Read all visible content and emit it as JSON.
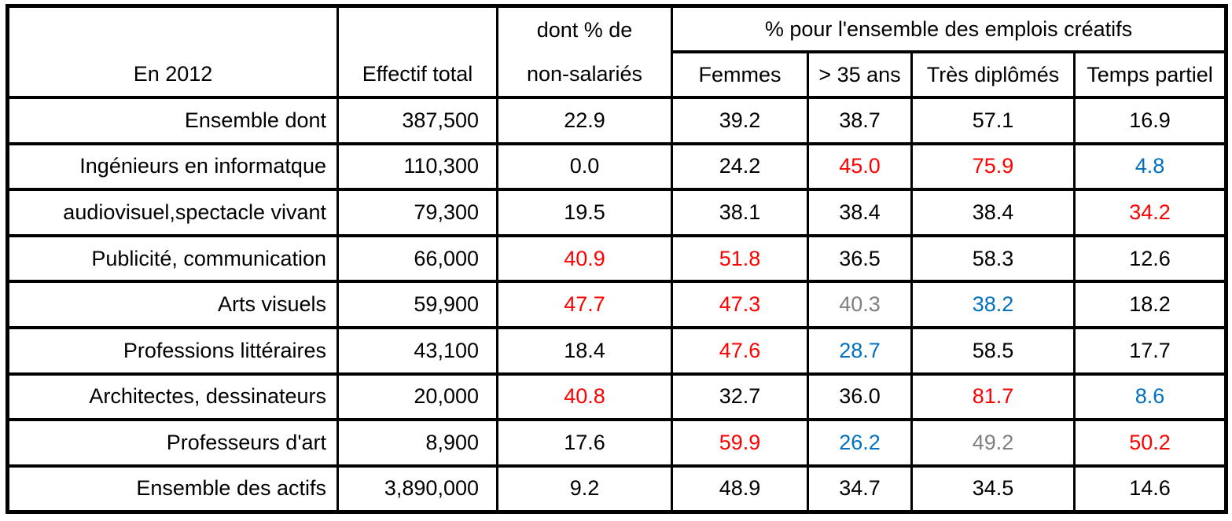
{
  "table": {
    "header": {
      "year_label": "En 2012",
      "effectif_label": "Effectif total",
      "non_salaries_line1": "dont % de",
      "non_salaries_line2": "non-salariés",
      "span_label": "% pour l'ensemble des emplois créatifs",
      "sub": [
        "Femmes",
        "> 35 ans",
        "Très diplômés",
        "Temps partiel"
      ]
    },
    "rows": [
      {
        "label": "Ensemble dont",
        "effectif": "387,500",
        "pcts": [
          {
            "v": "22.9",
            "c": "black"
          },
          {
            "v": "39.2",
            "c": "black"
          },
          {
            "v": "38.7",
            "c": "black"
          },
          {
            "v": "57.1",
            "c": "black"
          },
          {
            "v": "16.9",
            "c": "black"
          }
        ]
      },
      {
        "label": "Ingénieurs en informatque",
        "effectif": "110,300",
        "pcts": [
          {
            "v": "0.0",
            "c": "black"
          },
          {
            "v": "24.2",
            "c": "black"
          },
          {
            "v": "45.0",
            "c": "red"
          },
          {
            "v": "75.9",
            "c": "red"
          },
          {
            "v": "4.8",
            "c": "blue"
          }
        ]
      },
      {
        "label": "audiovisuel,spectacle vivant",
        "effectif": "79,300",
        "pcts": [
          {
            "v": "19.5",
            "c": "black"
          },
          {
            "v": "38.1",
            "c": "black"
          },
          {
            "v": "38.4",
            "c": "black"
          },
          {
            "v": "38.4",
            "c": "black"
          },
          {
            "v": "34.2",
            "c": "red"
          }
        ]
      },
      {
        "label": "Publicité, communication",
        "effectif": "66,000",
        "pcts": [
          {
            "v": "40.9",
            "c": "red"
          },
          {
            "v": "51.8",
            "c": "red"
          },
          {
            "v": "36.5",
            "c": "black"
          },
          {
            "v": "58.3",
            "c": "black"
          },
          {
            "v": "12.6",
            "c": "black"
          }
        ]
      },
      {
        "label": "Arts visuels",
        "effectif": "59,900",
        "pcts": [
          {
            "v": "47.7",
            "c": "red"
          },
          {
            "v": "47.3",
            "c": "red"
          },
          {
            "v": "40.3",
            "c": "gray"
          },
          {
            "v": "38.2",
            "c": "blue"
          },
          {
            "v": "18.2",
            "c": "black"
          }
        ]
      },
      {
        "label": "Professions littéraires",
        "effectif": "43,100",
        "pcts": [
          {
            "v": "18.4",
            "c": "black"
          },
          {
            "v": "47.6",
            "c": "red"
          },
          {
            "v": "28.7",
            "c": "blue"
          },
          {
            "v": "58.5",
            "c": "black"
          },
          {
            "v": "17.7",
            "c": "black"
          }
        ]
      },
      {
        "label": "Architectes, dessinateurs",
        "effectif": "20,000",
        "pcts": [
          {
            "v": "40.8",
            "c": "red"
          },
          {
            "v": "32.7",
            "c": "black"
          },
          {
            "v": "36.0",
            "c": "black"
          },
          {
            "v": "81.7",
            "c": "red"
          },
          {
            "v": "8.6",
            "c": "blue"
          }
        ]
      },
      {
        "label": "Professeurs d'art",
        "effectif": "8,900",
        "pcts": [
          {
            "v": "17.6",
            "c": "black"
          },
          {
            "v": "59.9",
            "c": "red"
          },
          {
            "v": "26.2",
            "c": "blue"
          },
          {
            "v": "49.2",
            "c": "gray"
          },
          {
            "v": "50.2",
            "c": "red"
          }
        ]
      },
      {
        "label": "Ensemble des actifs",
        "effectif": "3,890,000",
        "pcts": [
          {
            "v": "9.2",
            "c": "black"
          },
          {
            "v": "48.9",
            "c": "black"
          },
          {
            "v": "34.7",
            "c": "black"
          },
          {
            "v": "34.5",
            "c": "black"
          },
          {
            "v": "14.6",
            "c": "black"
          }
        ]
      }
    ]
  },
  "colors": {
    "black": "#000000",
    "red": "#ff0000",
    "blue": "#0070c0",
    "gray": "#808080"
  },
  "chart_data": {
    "type": "table",
    "title": "En 2012",
    "columns": [
      "En 2012",
      "Effectif total",
      "dont % de non-salariés",
      "Femmes",
      "> 35 ans",
      "Très diplômés",
      "Temps partiel"
    ],
    "column_group": {
      "label": "% pour l'ensemble des emplois créatifs",
      "columns": [
        "Femmes",
        "> 35 ans",
        "Très diplômés",
        "Temps partiel"
      ]
    },
    "rows": [
      [
        "Ensemble dont",
        387500,
        22.9,
        39.2,
        38.7,
        57.1,
        16.9
      ],
      [
        "Ingénieurs en informatque",
        110300,
        0.0,
        24.2,
        45.0,
        75.9,
        4.8
      ],
      [
        "audiovisuel,spectacle vivant",
        79300,
        19.5,
        38.1,
        38.4,
        38.4,
        34.2
      ],
      [
        "Publicité, communication",
        66000,
        40.9,
        51.8,
        36.5,
        58.3,
        12.6
      ],
      [
        "Arts visuels",
        59900,
        47.7,
        47.3,
        40.3,
        38.2,
        18.2
      ],
      [
        "Professions littéraires",
        43100,
        18.4,
        47.6,
        28.7,
        58.5,
        17.7
      ],
      [
        "Architectes, dessinateurs",
        20000,
        40.8,
        32.7,
        36.0,
        81.7,
        8.6
      ],
      [
        "Professeurs d'art",
        8900,
        17.6,
        59.9,
        26.2,
        49.2,
        50.2
      ],
      [
        "Ensemble des actifs",
        3890000,
        9.2,
        48.9,
        34.7,
        34.5,
        14.6
      ]
    ],
    "highlight_colors": {
      "red": "high values",
      "blue": "low values",
      "gray": "intermediate"
    }
  }
}
